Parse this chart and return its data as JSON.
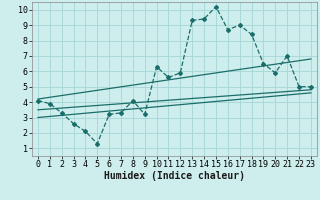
{
  "xlabel": "Humidex (Indice chaleur)",
  "bg_color": "#ceeeed",
  "line_color": "#1a6e6a",
  "xlim": [
    -0.5,
    23.5
  ],
  "ylim": [
    0.5,
    10.5
  ],
  "line1_x": [
    0,
    1,
    2,
    3,
    4,
    5,
    6,
    7,
    8,
    9,
    10,
    11,
    12,
    13,
    14,
    15,
    16,
    17,
    18,
    19,
    20,
    21,
    22,
    23
  ],
  "line1_y": [
    4.1,
    3.9,
    3.3,
    2.6,
    2.1,
    1.3,
    3.2,
    3.3,
    4.1,
    3.2,
    6.3,
    5.6,
    5.9,
    9.3,
    9.4,
    10.2,
    8.7,
    9.0,
    8.4,
    6.5,
    5.9,
    7.0,
    5.0,
    5.0
  ],
  "line2_x": [
    0,
    23
  ],
  "line2_y": [
    3.5,
    4.8
  ],
  "line3_x": [
    0,
    23
  ],
  "line3_y": [
    4.2,
    6.8
  ],
  "line4_x": [
    0,
    23
  ],
  "line4_y": [
    3.0,
    4.6
  ],
  "grid_color": "#aad8d8",
  "tick_fontsize": 6,
  "label_fontsize": 7
}
